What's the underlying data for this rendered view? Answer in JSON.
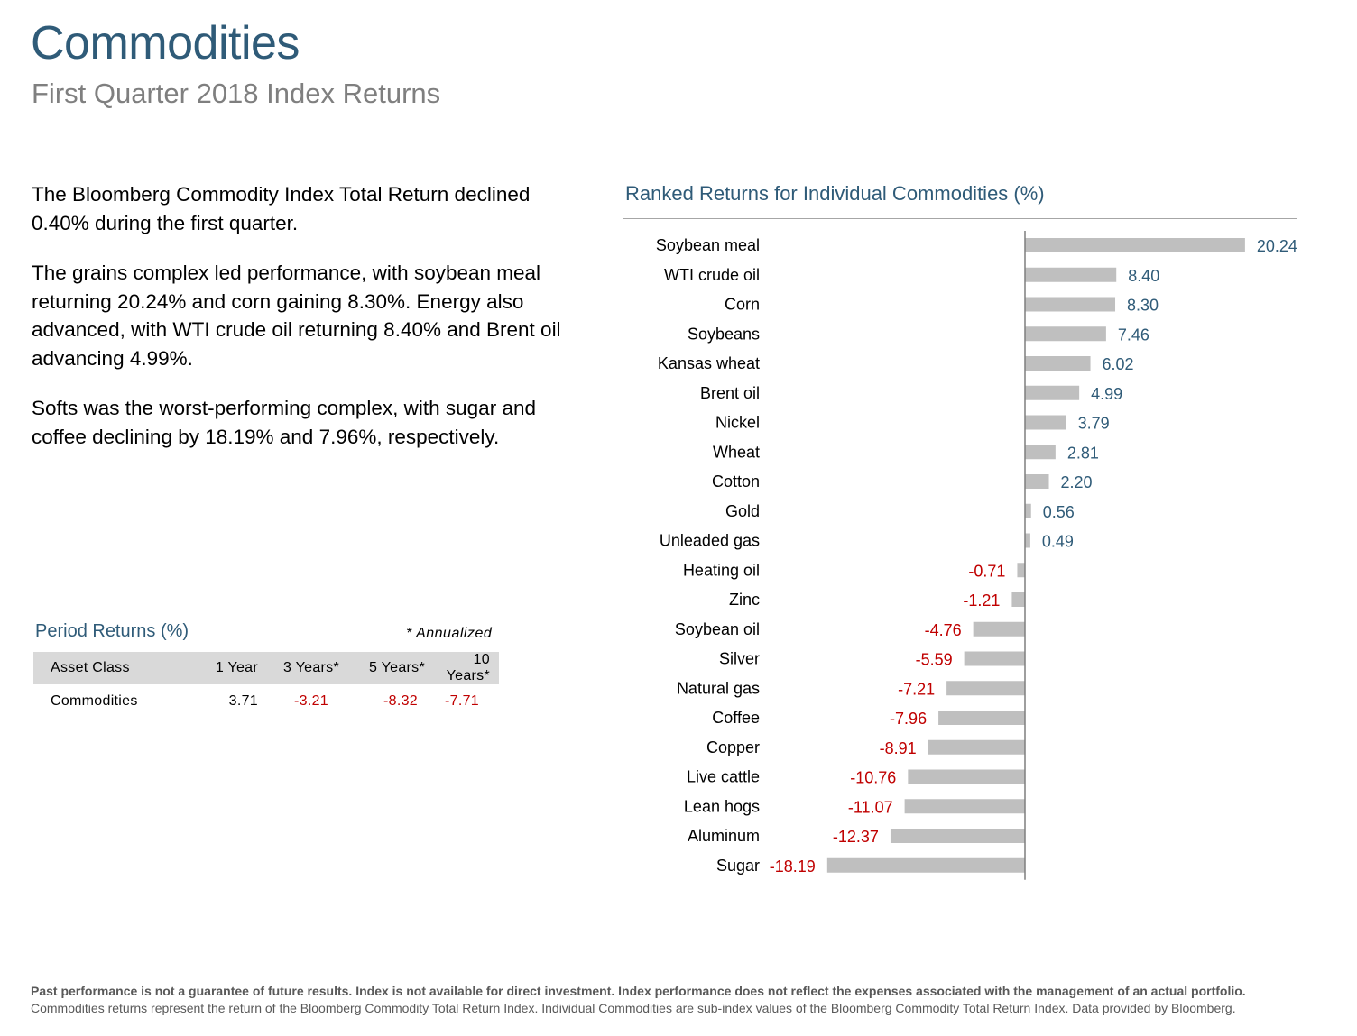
{
  "header": {
    "title": "Commodities",
    "subtitle": "First Quarter 2018 Index Returns"
  },
  "narrative": {
    "p1": "The Bloomberg Commodity Index Total Return declined 0.40% during the first quarter.",
    "p2": "The grains complex led performance, with soybean meal returning 20.24% and corn gaining 8.30%. Energy also advanced, with WTI crude oil returning 8.40% and Brent oil advancing 4.99%.",
    "p3": "Softs was the worst-performing complex, with sugar and coffee declining by 18.19% and 7.96%, respectively."
  },
  "period_returns": {
    "title": "Period Returns (%)",
    "note": "* Annualized",
    "headers": [
      "Asset Class",
      "1 Year",
      "3 Years*",
      "5 Years*",
      "10 Years*"
    ],
    "row": [
      "Commodities",
      "3.71",
      "-3.21",
      "-8.32",
      "-7.71"
    ]
  },
  "colors": {
    "accent": "#2f5b78",
    "negative": "#c00000",
    "bar": "#bfbfbf",
    "positive_label": "#2f5b78"
  },
  "chart_data": {
    "type": "bar",
    "orientation": "horizontal",
    "title": "Ranked Returns for Individual Commodities (%)",
    "categories": [
      "Soybean meal",
      "WTI crude oil",
      "Corn",
      "Soybeans",
      "Kansas wheat",
      "Brent oil",
      "Nickel",
      "Wheat",
      "Cotton",
      "Gold",
      "Unleaded gas",
      "Heating oil",
      "Zinc",
      "Soybean oil",
      "Silver",
      "Natural gas",
      "Coffee",
      "Copper",
      "Live cattle",
      "Lean hogs",
      "Aluminum",
      "Sugar"
    ],
    "values": [
      20.24,
      8.4,
      8.3,
      7.46,
      6.02,
      4.99,
      3.79,
      2.81,
      2.2,
      0.56,
      0.49,
      -0.71,
      -1.21,
      -4.76,
      -5.59,
      -7.21,
      -7.96,
      -8.91,
      -10.76,
      -11.07,
      -12.37,
      -18.19
    ],
    "labels": [
      "20.24",
      "8.40",
      "8.30",
      "7.46",
      "6.02",
      "4.99",
      "3.79",
      "2.81",
      "2.20",
      "0.56",
      "0.49",
      "-0.71",
      "-1.21",
      "-4.76",
      "-5.59",
      "-7.21",
      "-7.96",
      "-8.91",
      "-10.76",
      "-11.07",
      "-12.37",
      "-18.19"
    ],
    "xlim": [
      -18.19,
      20.24
    ],
    "grid": false,
    "legend": "none"
  },
  "footer": {
    "disclaimer_bold": "Past performance is not a guarantee of future results. Index is not available for direct investment. Index performance does not reflect the expenses associated with the management of an actual portfolio.",
    "disclaimer": "Commodities returns represent the return of the Bloomberg Commodity Total Return Index. Individual Commodities are sub-index values of the Bloomberg Commodity Total Return Index. Data provided by Bloomberg."
  }
}
